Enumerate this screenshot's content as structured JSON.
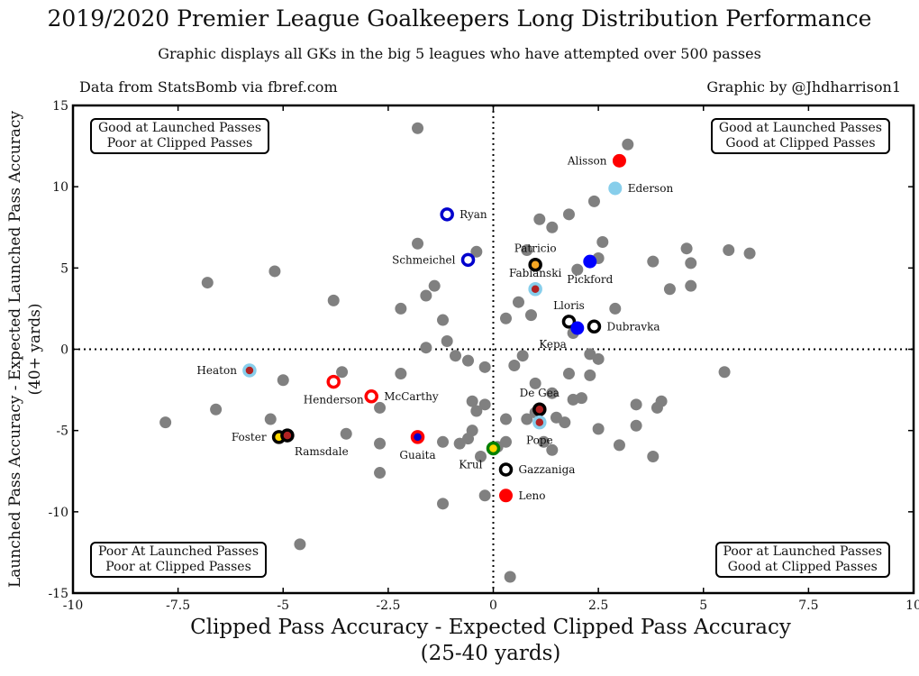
{
  "chart_data": {
    "type": "scatter",
    "title": "2019/2020 Premier League Goalkeepers Long Distribution Performance",
    "subtitle": "Graphic displays all GKs in the big 5 leagues who have attempted over 500 passes",
    "source": "Data from StatsBomb via fbref.com",
    "credit": "Graphic by @Jhdharrison1",
    "xlabel": [
      "Clipped Pass Accuracy - Expected Clipped Pass Accuracy",
      "(25-40 yards)"
    ],
    "ylabel": [
      "Launched Pass Accuracy - Expected Launched Pass Accuracy",
      "(40+ yards)"
    ],
    "xlim": [
      -10,
      10
    ],
    "ylim": [
      -15,
      15
    ],
    "xticks": [
      -10,
      -7.5,
      -5,
      -2.5,
      0,
      2.5,
      5,
      7.5,
      10
    ],
    "xtick_labels": [
      "-10",
      "-7.5",
      "-5",
      "-2.5",
      "0",
      "2.5",
      "5",
      "7.5",
      "10"
    ],
    "yticks": [
      -15,
      -10,
      -5,
      0,
      5,
      10,
      15
    ],
    "ytick_labels": [
      "-15",
      "-10",
      "-5",
      "0",
      "5",
      "10",
      "15"
    ],
    "quadrants": {
      "top_left": [
        "Good at Launched Passes",
        "Poor at Clipped Passes"
      ],
      "top_right": [
        "Good at Launched Passes",
        "Good at Clipped Passes"
      ],
      "bottom_left": [
        "Poor At Launched Passes",
        "Poor at Clipped Passes"
      ],
      "bottom_right": [
        "Poor at Launched Passes",
        "Good at Clipped Passes"
      ]
    },
    "others_color": "#808080",
    "others": [
      [
        -1.8,
        13.6
      ],
      [
        -1.8,
        6.5
      ],
      [
        -5.2,
        4.8
      ],
      [
        -6.8,
        4.1
      ],
      [
        -3.8,
        3.0
      ],
      [
        -2.2,
        2.5
      ],
      [
        -1.6,
        3.3
      ],
      [
        -1.4,
        3.9
      ],
      [
        -1.2,
        1.8
      ],
      [
        -1.1,
        0.5
      ],
      [
        -1.6,
        0.1
      ],
      [
        -0.9,
        -0.4
      ],
      [
        -0.4,
        6.0
      ],
      [
        0.8,
        6.1
      ],
      [
        -0.6,
        -0.7
      ],
      [
        -0.2,
        -1.1
      ],
      [
        0.3,
        1.9
      ],
      [
        0.6,
        2.9
      ],
      [
        0.9,
        2.1
      ],
      [
        0.7,
        -0.4
      ],
      [
        1.1,
        8.0
      ],
      [
        1.4,
        7.5
      ],
      [
        1.8,
        8.3
      ],
      [
        2.4,
        9.1
      ],
      [
        2.6,
        6.6
      ],
      [
        3.2,
        12.6
      ],
      [
        2.0,
        4.9
      ],
      [
        2.5,
        5.6
      ],
      [
        2.9,
        2.5
      ],
      [
        3.8,
        5.4
      ],
      [
        4.2,
        3.7
      ],
      [
        4.6,
        6.2
      ],
      [
        4.7,
        5.3
      ],
      [
        4.7,
        3.9
      ],
      [
        5.6,
        6.1
      ],
      [
        6.1,
        5.9
      ],
      [
        1.9,
        1.0
      ],
      [
        2.3,
        -0.3
      ],
      [
        2.5,
        -0.6
      ],
      [
        1.8,
        -1.5
      ],
      [
        2.3,
        -1.6
      ],
      [
        1.0,
        -2.1
      ],
      [
        0.5,
        -1.0
      ],
      [
        1.4,
        -2.7
      ],
      [
        1.9,
        -3.1
      ],
      [
        2.1,
        -3.0
      ],
      [
        1.5,
        -4.2
      ],
      [
        1.7,
        -4.5
      ],
      [
        1.4,
        -6.2
      ],
      [
        2.5,
        -4.9
      ],
      [
        3.0,
        -5.9
      ],
      [
        3.4,
        -3.4
      ],
      [
        3.4,
        -4.7
      ],
      [
        3.9,
        -3.6
      ],
      [
        4.0,
        -3.2
      ],
      [
        3.8,
        -6.6
      ],
      [
        5.5,
        -1.4
      ],
      [
        -0.2,
        -3.4
      ],
      [
        -0.5,
        -3.2
      ],
      [
        -0.4,
        -3.8
      ],
      [
        -0.5,
        -5.0
      ],
      [
        -0.6,
        -5.5
      ],
      [
        -0.8,
        -5.8
      ],
      [
        0.3,
        -4.3
      ],
      [
        0.8,
        -4.3
      ],
      [
        1.0,
        -3.9
      ],
      [
        -0.2,
        -9.0
      ],
      [
        0.4,
        -14.0
      ],
      [
        -1.2,
        -9.5
      ],
      [
        -1.2,
        -5.7
      ],
      [
        -2.2,
        -1.5
      ],
      [
        -2.7,
        -3.6
      ],
      [
        -2.7,
        -5.8
      ],
      [
        -2.7,
        -7.6
      ],
      [
        -3.6,
        -1.4
      ],
      [
        -3.5,
        -5.2
      ],
      [
        -4.6,
        -12.0
      ],
      [
        -5.0,
        -1.9
      ],
      [
        -5.3,
        -4.3
      ],
      [
        -6.6,
        -3.7
      ],
      [
        -7.8,
        -4.5
      ],
      [
        0.1,
        -6.0
      ],
      [
        0.3,
        -5.7
      ],
      [
        -0.3,
        -6.6
      ],
      [
        1.2,
        -5.7
      ]
    ],
    "highlighted": [
      {
        "name": "Alisson",
        "x": 3.0,
        "y": 11.6,
        "fill": "#ff0000",
        "stroke": "#ff0000",
        "label_side": "left"
      },
      {
        "name": "Ederson",
        "x": 2.9,
        "y": 9.9,
        "fill": "#87ceeb",
        "stroke": "#87ceeb",
        "label_side": "right"
      },
      {
        "name": "Ryan",
        "x": -1.1,
        "y": 8.3,
        "fill": "#ffffff",
        "stroke": "#0000cd",
        "label_side": "right"
      },
      {
        "name": "Schmeichel",
        "x": -0.6,
        "y": 5.5,
        "fill": "#ffffff",
        "stroke": "#0000cd",
        "label_side": "left"
      },
      {
        "name": "Patricio",
        "x": 1.0,
        "y": 5.2,
        "fill": "#f5a623",
        "stroke": "#000000",
        "label_side": "above"
      },
      {
        "name": "Fabianski",
        "x": 1.0,
        "y": 3.7,
        "fill": "#b22222",
        "stroke": "#87ceeb",
        "label_side": "above"
      },
      {
        "name": "Pickford",
        "x": 2.3,
        "y": 5.4,
        "fill": "#0000ff",
        "stroke": "#0000ff",
        "label_side": "below"
      },
      {
        "name": "Lloris",
        "x": 1.8,
        "y": 1.7,
        "fill": "#ffffff",
        "stroke": "#000000",
        "label_side": "above"
      },
      {
        "name": "Kepa",
        "x": 2.0,
        "y": 1.3,
        "fill": "#0000ff",
        "stroke": "#0000ff",
        "label_side": "belowleft"
      },
      {
        "name": "Dubravka",
        "x": 2.4,
        "y": 1.4,
        "fill": "#ffffff",
        "stroke": "#000000",
        "label_side": "right"
      },
      {
        "name": "Heaton",
        "x": -5.8,
        "y": -1.3,
        "fill": "#b22222",
        "stroke": "#87ceeb",
        "label_side": "left"
      },
      {
        "name": "Henderson",
        "x": -3.8,
        "y": -2.0,
        "fill": "#ffffff",
        "stroke": "#ff0000",
        "label_side": "below"
      },
      {
        "name": "McCarthy",
        "x": -2.9,
        "y": -2.9,
        "fill": "#ffffff",
        "stroke": "#ff0000",
        "label_side": "right"
      },
      {
        "name": "De Gea",
        "x": 1.1,
        "y": -3.7,
        "fill": "#b22222",
        "stroke": "#000000",
        "label_side": "above"
      },
      {
        "name": "Pope",
        "x": 1.1,
        "y": -4.5,
        "fill": "#b22222",
        "stroke": "#87ceeb",
        "label_side": "below"
      },
      {
        "name": "Foster",
        "x": -5.1,
        "y": -5.4,
        "fill": "#ffd700",
        "stroke": "#000000",
        "label_side": "left"
      },
      {
        "name": "Ramsdale",
        "x": -4.9,
        "y": -5.3,
        "fill": "#b22222",
        "stroke": "#000000",
        "label_side": "belowright"
      },
      {
        "name": "Guaita",
        "x": -1.8,
        "y": -5.4,
        "fill": "#0000cd",
        "stroke": "#ff0000",
        "label_side": "below"
      },
      {
        "name": "Krul",
        "x": 0.0,
        "y": -6.1,
        "fill": "#ffd700",
        "stroke": "#008000",
        "label_side": "belowleft"
      },
      {
        "name": "Gazzaniga",
        "x": 0.3,
        "y": -7.4,
        "fill": "#ffffff",
        "stroke": "#000000",
        "label_side": "right"
      },
      {
        "name": "Leno",
        "x": 0.3,
        "y": -9.0,
        "fill": "#ff0000",
        "stroke": "#ff0000",
        "label_side": "right"
      }
    ]
  }
}
